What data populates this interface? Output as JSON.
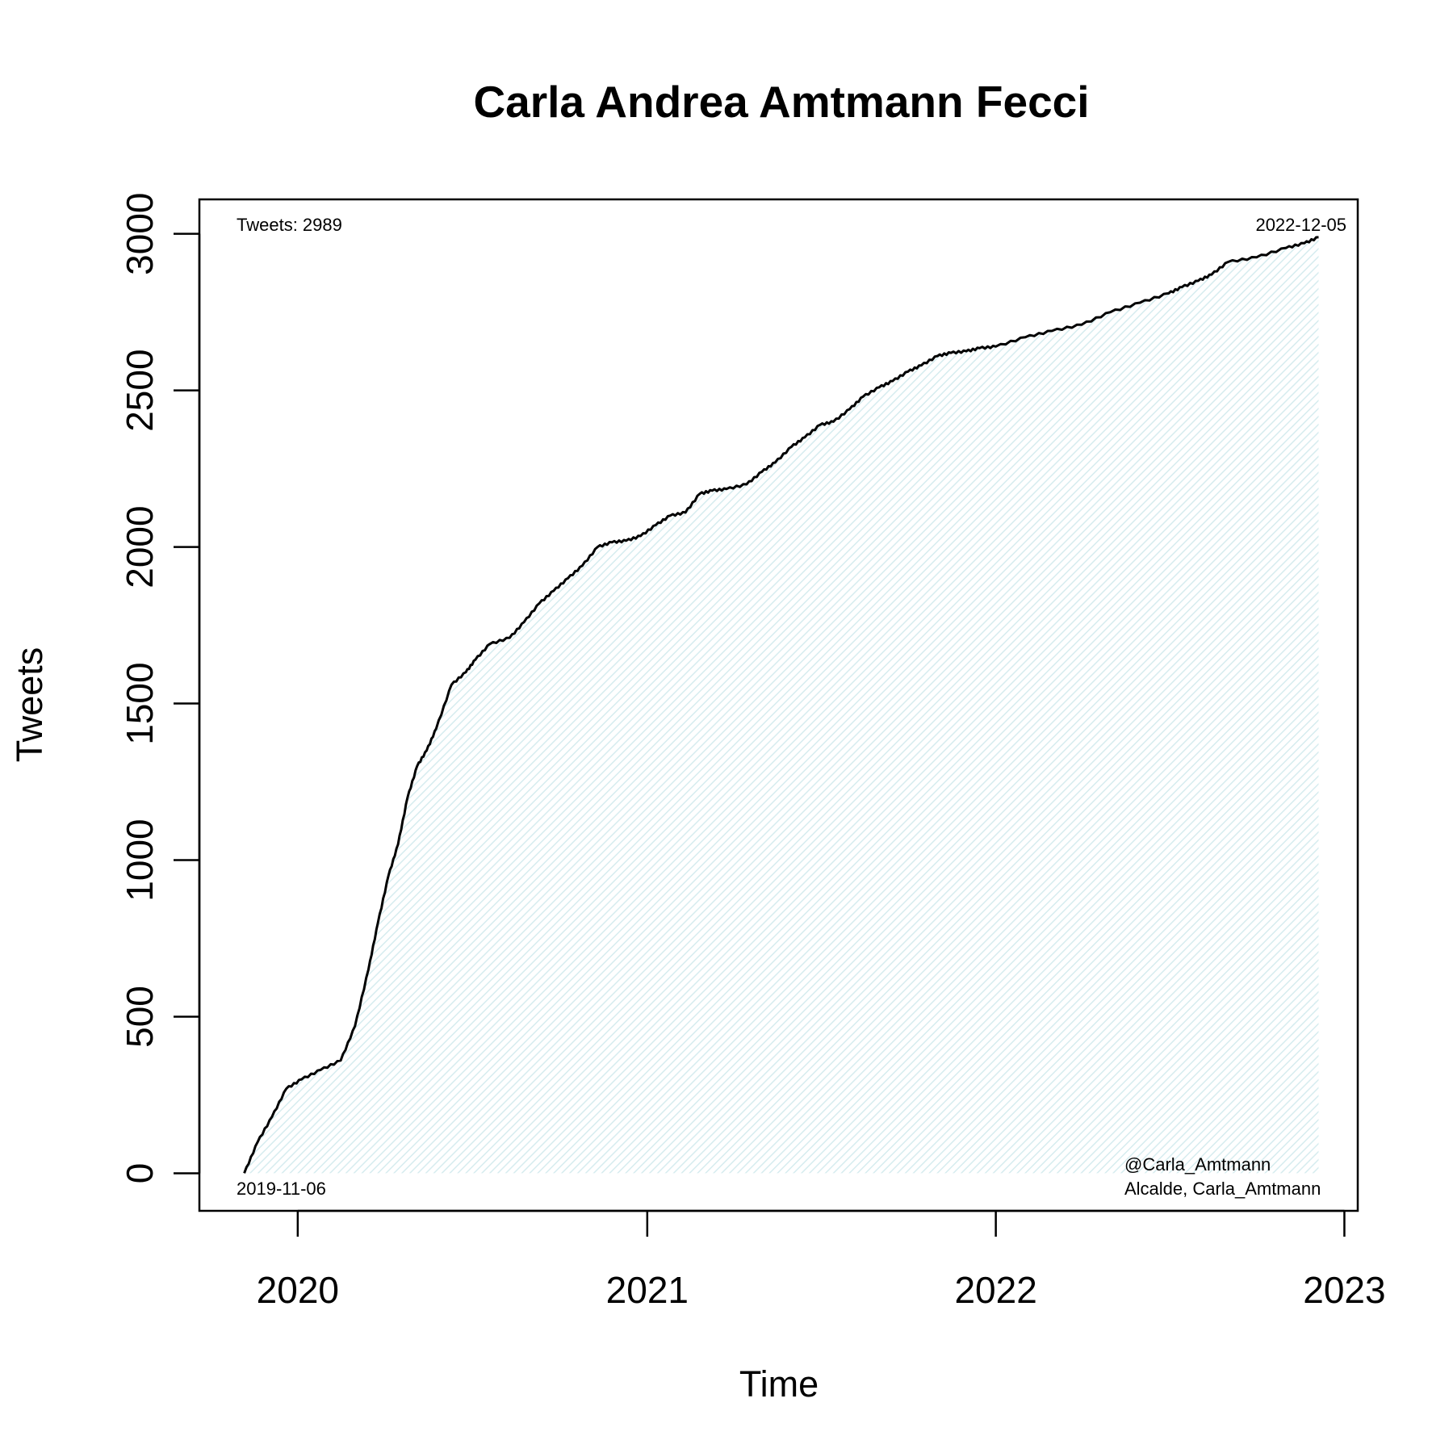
{
  "chart_data": {
    "type": "area",
    "title": "Carla Andrea Amtmann Fecci",
    "xlabel": "Time",
    "ylabel": "Tweets",
    "x_scale": "date",
    "xlim": [
      "2019-09-20",
      "2023-01-15"
    ],
    "ylim": [
      -120,
      3110
    ],
    "x_ticks": [
      {
        "date": "2020-01-01",
        "label": "2020"
      },
      {
        "date": "2021-01-01",
        "label": "2021"
      },
      {
        "date": "2022-01-01",
        "label": "2022"
      },
      {
        "date": "2023-01-01",
        "label": "2023"
      }
    ],
    "y_ticks": [
      {
        "value": 0,
        "label": "0"
      },
      {
        "value": 500,
        "label": "500"
      },
      {
        "value": 1000,
        "label": "1000"
      },
      {
        "value": 1500,
        "label": "1500"
      },
      {
        "value": 2000,
        "label": "2000"
      },
      {
        "value": 2500,
        "label": "2500"
      },
      {
        "value": 3000,
        "label": "3000"
      }
    ],
    "grid": false,
    "fill_color": "#e3f1f4",
    "line_color": "#000000",
    "annotations": {
      "total": "Tweets: 2989",
      "end_date": "2022-12-05",
      "start_date": "2019-11-06",
      "handle": "@Carla_Amtmann",
      "description": "Alcalde, Carla_Amtmann"
    },
    "series": [
      {
        "x": [
          "2019-11-06",
          "2019-11-20",
          "2019-12-05",
          "2019-12-20",
          "2020-01-05",
          "2020-01-25",
          "2020-02-15",
          "2020-03-01",
          "2020-03-15",
          "2020-03-25",
          "2020-04-05",
          "2020-04-15",
          "2020-04-25",
          "2020-05-05",
          "2020-05-15",
          "2020-05-25",
          "2020-06-10",
          "2020-06-25",
          "2020-07-05",
          "2020-07-20",
          "2020-08-10",
          "2020-08-25",
          "2020-09-10",
          "2020-09-25",
          "2020-10-10",
          "2020-10-25",
          "2020-11-10",
          "2020-11-25",
          "2020-12-10",
          "2020-12-25",
          "2021-01-10",
          "2021-01-25",
          "2021-02-10",
          "2021-02-25",
          "2021-03-10",
          "2021-03-25",
          "2021-04-15",
          "2021-05-01",
          "2021-05-15",
          "2021-06-01",
          "2021-06-15",
          "2021-07-01",
          "2021-07-15",
          "2021-08-01",
          "2021-08-15",
          "2021-09-01",
          "2021-09-15",
          "2021-10-01",
          "2021-10-15",
          "2021-11-01",
          "2021-11-15",
          "2021-12-01",
          "2021-12-15",
          "2022-01-01",
          "2022-02-01",
          "2022-03-01",
          "2022-04-01",
          "2022-05-01",
          "2022-06-01",
          "2022-07-01",
          "2022-07-15",
          "2022-08-01",
          "2022-08-15",
          "2022-09-01",
          "2022-10-01",
          "2022-11-01",
          "2022-11-20",
          "2022-12-05"
        ],
        "y": [
          0,
          100,
          180,
          270,
          300,
          330,
          360,
          470,
          650,
          800,
          950,
          1050,
          1200,
          1300,
          1350,
          1420,
          1560,
          1600,
          1640,
          1690,
          1710,
          1760,
          1820,
          1860,
          1900,
          1940,
          2000,
          2015,
          2020,
          2035,
          2070,
          2100,
          2110,
          2170,
          2180,
          2185,
          2200,
          2240,
          2270,
          2320,
          2350,
          2390,
          2400,
          2440,
          2480,
          2510,
          2530,
          2560,
          2580,
          2610,
          2620,
          2625,
          2635,
          2640,
          2670,
          2690,
          2710,
          2750,
          2780,
          2810,
          2830,
          2850,
          2870,
          2910,
          2925,
          2955,
          2970,
          2989
        ]
      }
    ]
  }
}
